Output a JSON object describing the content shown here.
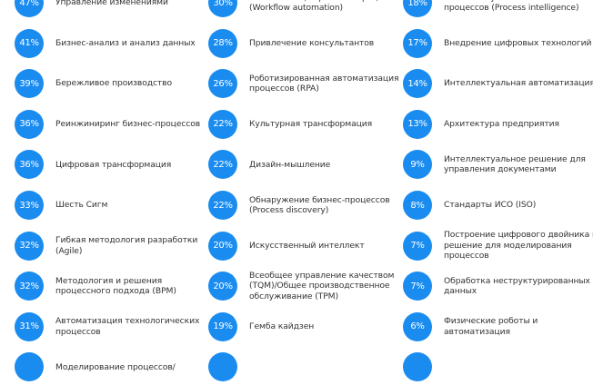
{
  "accent_color": "#1a8cf0",
  "columns": [
    {
      "items": [
        {
          "percent": "47%",
          "label": "Управление изменениями"
        },
        {
          "percent": "41%",
          "label": "Бизнес-анализ и анализ данных"
        },
        {
          "percent": "39%",
          "label": "Бережливое производство"
        },
        {
          "percent": "36%",
          "label": "Реинжиниринг бизнес-процессов"
        },
        {
          "percent": "36%",
          "label": "Цифровая трансформация"
        },
        {
          "percent": "33%",
          "label": "Шесть Сигм"
        },
        {
          "percent": "32%",
          "label": "Гибкая методология разработки (Agile)"
        },
        {
          "percent": "32%",
          "label": "Методология и решения процессного подхода (BPM)"
        },
        {
          "percent": "31%",
          "label": "Автоматизация технологических процессов"
        },
        {
          "percent": "",
          "label": "Моделирование процессов/"
        }
      ]
    },
    {
      "items": [
        {
          "percent": "30%",
          "label": "Автоматизация рабочих процессов (Workflow automation)"
        },
        {
          "percent": "28%",
          "label": "Привлечение консультантов"
        },
        {
          "percent": "26%",
          "label": "Роботизированная автоматизация процессов (RPA)"
        },
        {
          "percent": "22%",
          "label": "Культурная трансформация"
        },
        {
          "percent": "22%",
          "label": "Дизайн-мышление"
        },
        {
          "percent": "22%",
          "label": "Обнаружение бизнес-процессов (Process discovery)"
        },
        {
          "percent": "20%",
          "label": "Искусственный интеллект"
        },
        {
          "percent": "20%",
          "label": "Всеобщее управление качеством (TQM)/Общее производственное обслуживание (TPM)"
        },
        {
          "percent": "19%",
          "label": "Гемба кайдзен"
        },
        {
          "percent": "",
          "label": ""
        }
      ]
    },
    {
      "items": [
        {
          "percent": "18%",
          "label": "Интеллектуальный анализ бизнес-процессов (Process intelligence)"
        },
        {
          "percent": "17%",
          "label": "Внедрение цифровых технологий"
        },
        {
          "percent": "14%",
          "label": "Интеллектуальная автоматизация"
        },
        {
          "percent": "13%",
          "label": "Архитектура предприятия"
        },
        {
          "percent": "9%",
          "label": "Интеллектуальное решение для управления документами"
        },
        {
          "percent": "8%",
          "label": "Стандарты ИСО (ISO)"
        },
        {
          "percent": "7%",
          "label": "Построение цифрового двойника и решение для моделирования процессов"
        },
        {
          "percent": "7%",
          "label": "Обработка неструктурированных данных"
        },
        {
          "percent": "6%",
          "label": "Физические роботы и автоматизация"
        },
        {
          "percent": "",
          "label": ""
        }
      ]
    }
  ]
}
